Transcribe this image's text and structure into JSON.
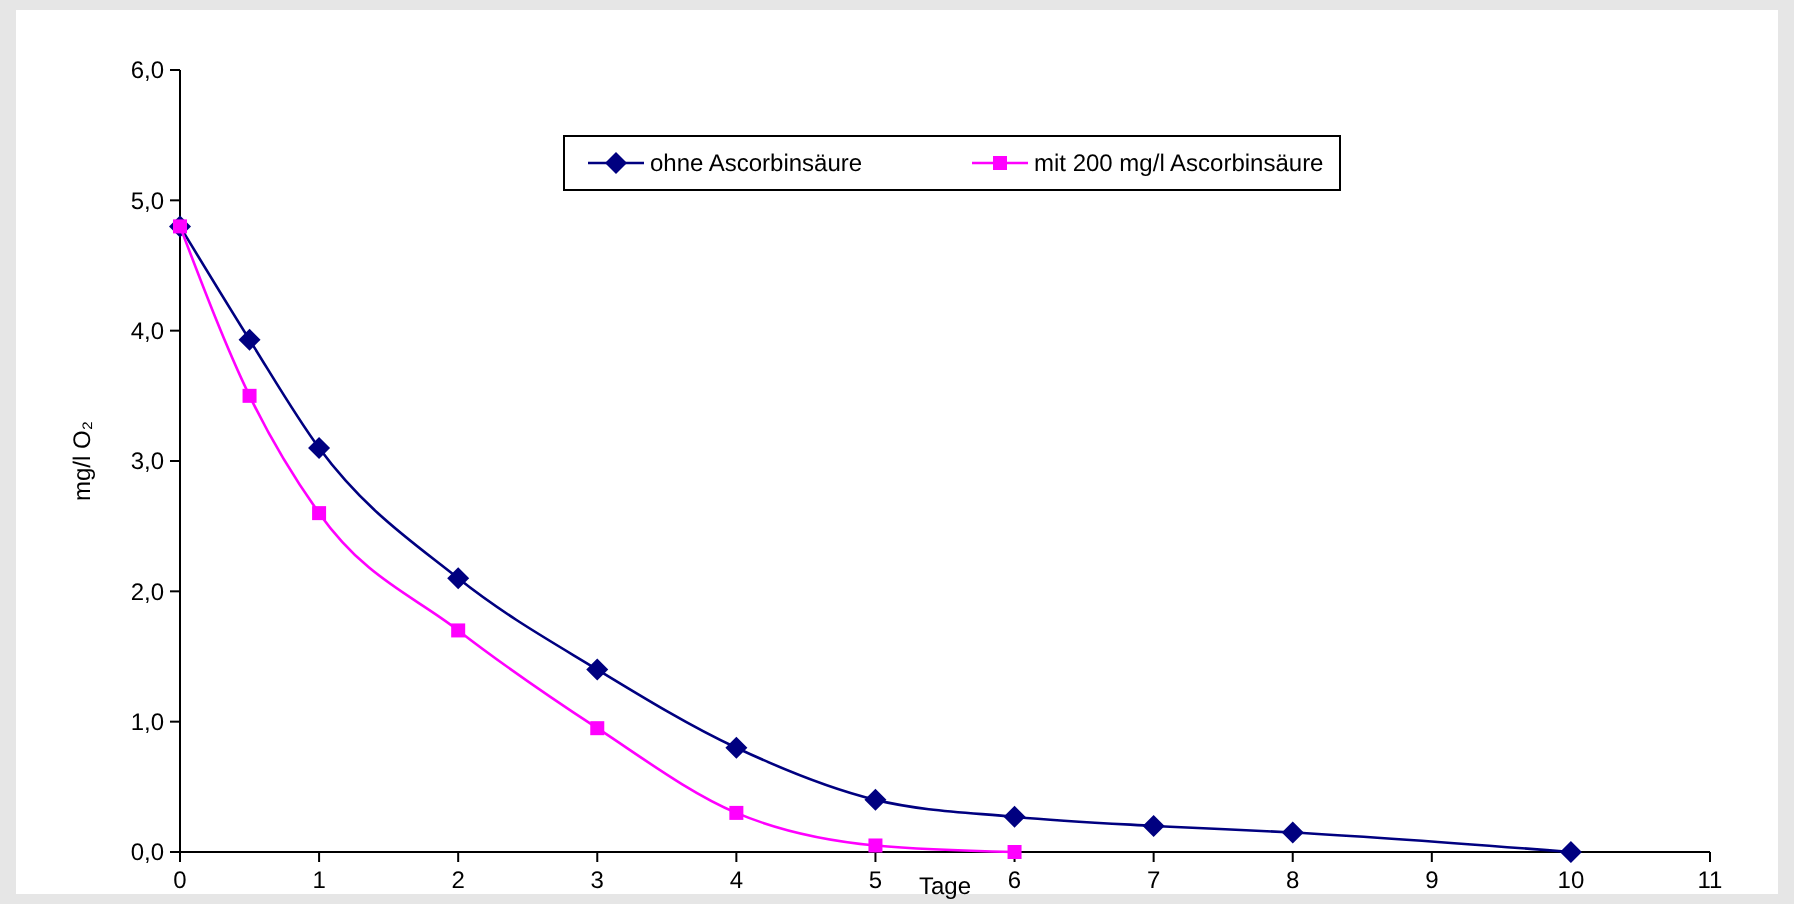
{
  "chart_data": {
    "type": "line",
    "xlabel": "Tage",
    "ylabel": "mg/l O₂",
    "xlim": [
      0,
      11
    ],
    "xticks": [
      0,
      1,
      2,
      3,
      4,
      5,
      6,
      7,
      8,
      9,
      10,
      11
    ],
    "ylim": [
      0,
      6
    ],
    "yticks": [
      {
        "value": 0,
        "label": "0,0"
      },
      {
        "value": 1,
        "label": "1,0"
      },
      {
        "value": 2,
        "label": "2,0"
      },
      {
        "value": 3,
        "label": "3,0"
      },
      {
        "value": 4,
        "label": "4,0"
      },
      {
        "value": 5,
        "label": "5,0"
      },
      {
        "value": 6,
        "label": "6,0"
      }
    ],
    "grid": false,
    "legend": "top",
    "line_style": "solid",
    "series": [
      {
        "name": "ohne Ascorbinsäure",
        "color": "#000080",
        "marker": "diamond",
        "x": [
          0,
          0.5,
          1,
          2,
          3,
          4,
          5,
          6,
          7,
          8,
          10
        ],
        "values": [
          4.8,
          3.93,
          3.1,
          2.1,
          1.4,
          0.8,
          0.4,
          0.27,
          0.2,
          0.15,
          0
        ]
      },
      {
        "name": "mit 200 mg/l Ascorbinsäure",
        "color": "#ff00ff",
        "marker": "square",
        "x": [
          0,
          0.5,
          1,
          2,
          3,
          4,
          5,
          6
        ],
        "values": [
          4.8,
          3.5,
          2.6,
          1.7,
          0.95,
          0.3,
          0.05,
          0
        ]
      }
    ]
  }
}
